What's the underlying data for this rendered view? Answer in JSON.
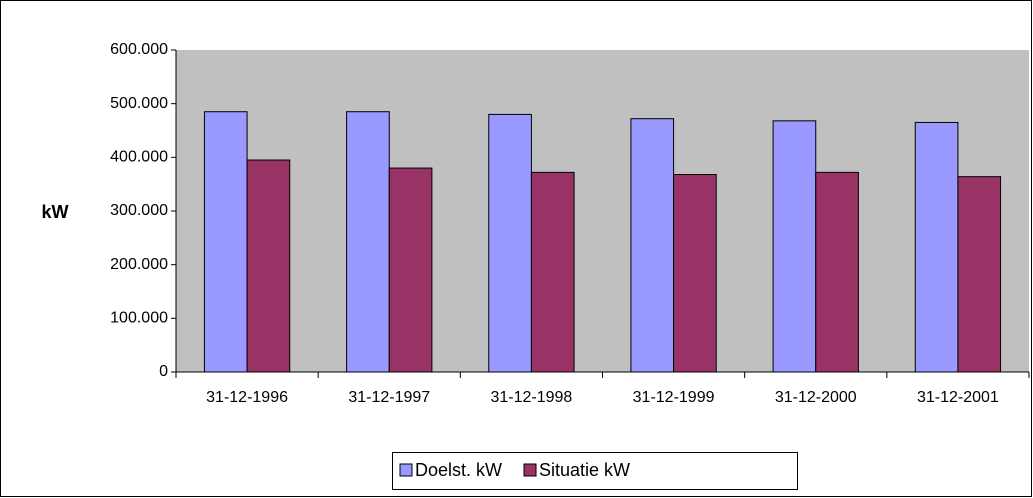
{
  "chart_data": {
    "type": "bar",
    "y_label": "kW",
    "categories": [
      "31-12-1996",
      "31-12-1997",
      "31-12-1998",
      "31-12-1999",
      "31-12-2000",
      "31-12-2001"
    ],
    "series": [
      {
        "name": "Doelst. kW",
        "color": "#9999ff",
        "values": [
          485000,
          485000,
          480000,
          472000,
          468000,
          465000
        ]
      },
      {
        "name": "Situatie kW",
        "color": "#993366",
        "values": [
          395000,
          380000,
          372000,
          368000,
          372000,
          364000
        ]
      }
    ],
    "ylim": [
      0,
      600000
    ],
    "yticks": [
      0,
      {
        "value": 100000,
        "label": "100.000"
      },
      {
        "value": 200000,
        "label": "200.000"
      },
      {
        "value": 300000,
        "label": "300.000"
      },
      {
        "value": 400000,
        "label": "400.000"
      },
      {
        "value": 500000,
        "label": "500.000"
      },
      {
        "value": 600000,
        "label": "600.000"
      }
    ],
    "grid": false,
    "plot_background": "#c0c0c0",
    "legend": "bottom"
  }
}
